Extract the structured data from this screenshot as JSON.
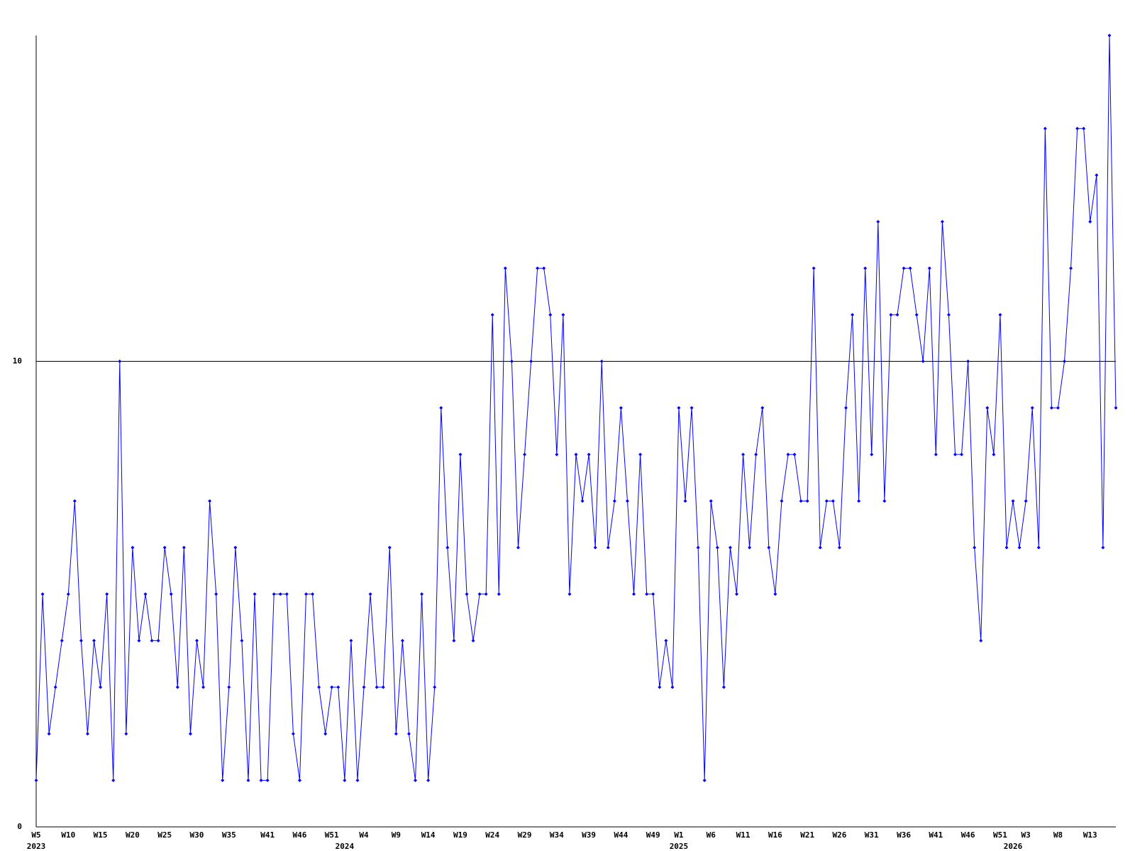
{
  "chart_data": {
    "type": "line",
    "categories": [
      "W5",
      null,
      null,
      null,
      null,
      "W10",
      null,
      null,
      null,
      null,
      "W15",
      null,
      null,
      null,
      null,
      "W20",
      null,
      null,
      null,
      null,
      "W25",
      null,
      null,
      null,
      null,
      "W30",
      null,
      null,
      null,
      null,
      "W35",
      null,
      null,
      null,
      null,
      null,
      "W41",
      null,
      null,
      null,
      null,
      "W46",
      null,
      null,
      null,
      null,
      "W51",
      null,
      null,
      null,
      null,
      "W4",
      null,
      null,
      null,
      null,
      "W9",
      null,
      null,
      null,
      null,
      "W14",
      null,
      null,
      null,
      null,
      "W19",
      null,
      null,
      null,
      null,
      "W24",
      null,
      null,
      null,
      null,
      "W29",
      null,
      null,
      null,
      null,
      "W34",
      null,
      null,
      null,
      null,
      "W39",
      null,
      null,
      null,
      null,
      "W44",
      null,
      null,
      null,
      null,
      "W49",
      null,
      null,
      null,
      "W1",
      null,
      null,
      null,
      null,
      "W6",
      null,
      null,
      null,
      null,
      "W11",
      null,
      null,
      null,
      null,
      "W16",
      null,
      null,
      null,
      null,
      "W21",
      null,
      null,
      null,
      null,
      "W26",
      null,
      null,
      null,
      null,
      "W31",
      null,
      null,
      null,
      null,
      "W36",
      null,
      null,
      null,
      null,
      "W41",
      null,
      null,
      null,
      null,
      "W46",
      null,
      null,
      null,
      null,
      "W51",
      null,
      null,
      null,
      "W3",
      null,
      null,
      null,
      null,
      "W8",
      null,
      null,
      null,
      null,
      "W13",
      null,
      null,
      null,
      null
    ],
    "years": [
      "2023",
      null,
      null,
      null,
      null,
      null,
      null,
      null,
      null,
      null,
      null,
      null,
      null,
      null,
      null,
      null,
      null,
      null,
      null,
      null,
      null,
      null,
      null,
      null,
      null,
      null,
      null,
      null,
      null,
      null,
      null,
      null,
      null,
      null,
      null,
      null,
      null,
      null,
      null,
      null,
      null,
      null,
      null,
      null,
      null,
      null,
      null,
      null,
      "2024",
      null,
      null,
      null,
      null,
      null,
      null,
      null,
      null,
      null,
      null,
      null,
      null,
      null,
      null,
      null,
      null,
      null,
      null,
      null,
      null,
      null,
      null,
      null,
      null,
      null,
      null,
      null,
      null,
      null,
      null,
      null,
      null,
      null,
      null,
      null,
      null,
      null,
      null,
      null,
      null,
      null,
      null,
      null,
      null,
      null,
      null,
      null,
      null,
      null,
      null,
      null,
      "2025",
      null,
      null,
      null,
      null,
      null,
      null,
      null,
      null,
      null,
      null,
      null,
      null,
      null,
      null,
      null,
      null,
      null,
      null,
      null,
      null,
      null,
      null,
      null,
      null,
      null,
      null,
      null,
      null,
      null,
      null,
      null,
      null,
      null,
      null,
      null,
      null,
      null,
      null,
      null,
      null,
      null,
      null,
      null,
      null,
      null,
      null,
      null,
      null,
      null,
      null,
      null,
      "2026",
      null,
      null,
      null,
      null,
      null,
      null,
      null,
      null,
      null,
      null,
      null,
      null,
      null,
      null,
      null,
      null
    ],
    "values": [
      1,
      5,
      2,
      3,
      4,
      5,
      7,
      4,
      2,
      4,
      3,
      5,
      1,
      10,
      2,
      6,
      4,
      5,
      4,
      4,
      6,
      5,
      3,
      6,
      2,
      4,
      3,
      7,
      5,
      1,
      3,
      6,
      4,
      1,
      5,
      1,
      1,
      5,
      5,
      5,
      2,
      1,
      5,
      5,
      3,
      2,
      3,
      3,
      1,
      4,
      1,
      3,
      5,
      3,
      3,
      6,
      2,
      4,
      2,
      1,
      5,
      1,
      3,
      9,
      6,
      4,
      8,
      5,
      4,
      5,
      5,
      11,
      5,
      12,
      10,
      6,
      8,
      10,
      12,
      12,
      11,
      8,
      11,
      5,
      8,
      7,
      8,
      6,
      10,
      6,
      7,
      9,
      7,
      5,
      8,
      5,
      5,
      3,
      4,
      3,
      9,
      7,
      9,
      6,
      1,
      7,
      6,
      3,
      6,
      5,
      8,
      6,
      8,
      9,
      6,
      5,
      7,
      8,
      8,
      7,
      7,
      12,
      6,
      7,
      7,
      6,
      9,
      11,
      7,
      12,
      8,
      13,
      7,
      11,
      11,
      12,
      12,
      11,
      10,
      12,
      8,
      13,
      11,
      8,
      8,
      10,
      6,
      4,
      9,
      8,
      11,
      6,
      7,
      6,
      7,
      9,
      6,
      15,
      9,
      9,
      10,
      12,
      15,
      15,
      13,
      14,
      6,
      17,
      9
    ],
    "color": "#0000ff",
    "ylim": [
      0,
      17
    ],
    "yticks": [
      0,
      10
    ],
    "grid": true
  }
}
